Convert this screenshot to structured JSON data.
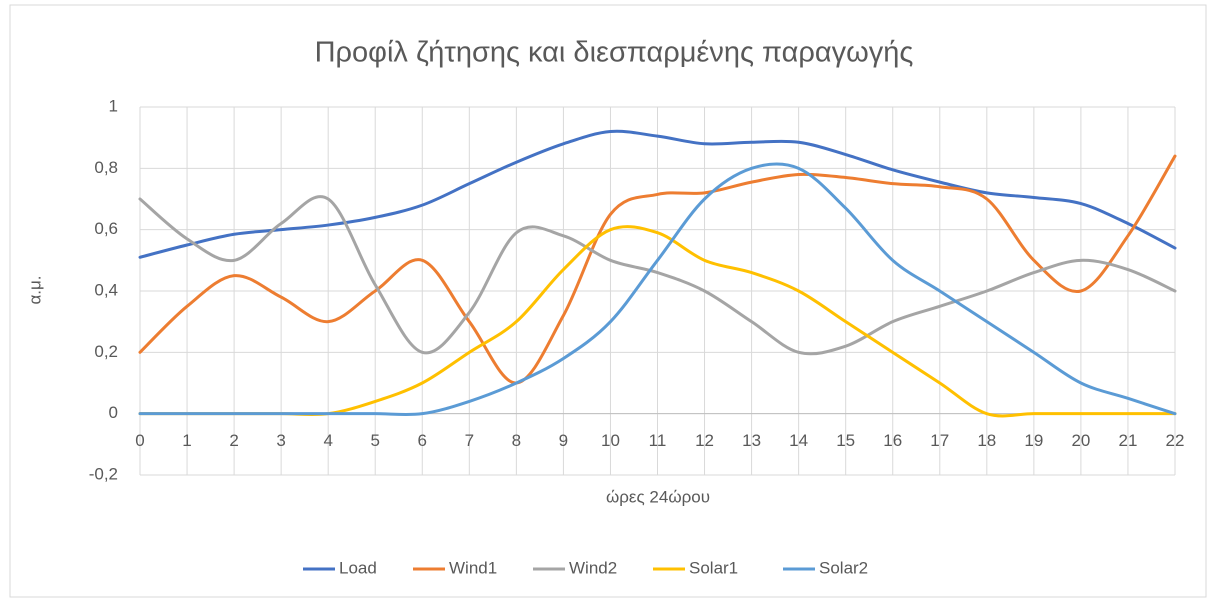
{
  "chart_data": {
    "type": "line",
    "title": "Προφίλ ζήτησης και διεσπαρμένης παραγωγής",
    "x_label": "ώρες 24ώρου",
    "y_label": "α.μ.",
    "x": [
      0,
      1,
      2,
      3,
      4,
      5,
      6,
      7,
      8,
      9,
      10,
      11,
      12,
      13,
      14,
      15,
      16,
      17,
      18,
      19,
      20,
      21,
      22
    ],
    "xlim": [
      0,
      22
    ],
    "xticks": [
      0,
      1,
      2,
      3,
      4,
      5,
      6,
      7,
      8,
      9,
      10,
      11,
      12,
      13,
      14,
      15,
      16,
      17,
      18,
      19,
      20,
      21,
      22
    ],
    "ylim": [
      -0.2,
      1
    ],
    "yticks": [
      {
        "value": -0.2,
        "label": "-0,2"
      },
      0,
      {
        "value": 0.2,
        "label": "0,2"
      },
      {
        "value": 0.4,
        "label": "0,4"
      },
      {
        "value": 0.6,
        "label": "0,6"
      },
      {
        "value": 0.8,
        "label": "0,8"
      },
      1
    ],
    "grid": true,
    "smooth": true,
    "legend": "bottom",
    "series": [
      {
        "name": "Load",
        "color": "#4472c4",
        "values": [
          0.51,
          0.55,
          0.585,
          0.6,
          0.615,
          0.64,
          0.68,
          0.75,
          0.82,
          0.88,
          0.92,
          0.905,
          0.88,
          0.885,
          0.885,
          0.845,
          0.795,
          0.755,
          0.72,
          0.705,
          0.685,
          0.62,
          0.54
        ]
      },
      {
        "name": "Wind1",
        "color": "#ed7d31",
        "values": [
          0.2,
          0.35,
          0.45,
          0.38,
          0.3,
          0.4,
          0.5,
          0.3,
          0.1,
          0.32,
          0.65,
          0.715,
          0.72,
          0.755,
          0.78,
          0.77,
          0.75,
          0.74,
          0.7,
          0.5,
          0.4,
          0.58,
          0.84
        ]
      },
      {
        "name": "Wind2",
        "color": "#a5a5a5",
        "values": [
          0.7,
          0.57,
          0.5,
          0.62,
          0.7,
          0.42,
          0.2,
          0.33,
          0.59,
          0.58,
          0.5,
          0.46,
          0.4,
          0.3,
          0.2,
          0.22,
          0.3,
          0.35,
          0.4,
          0.46,
          0.5,
          0.47,
          0.4
        ]
      },
      {
        "name": "Solar1",
        "color": "#ffc000",
        "values": [
          0,
          0,
          0,
          0,
          0,
          0.04,
          0.1,
          0.2,
          0.3,
          0.47,
          0.6,
          0.59,
          0.5,
          0.46,
          0.4,
          0.3,
          0.2,
          0.1,
          0,
          0,
          0,
          0,
          0
        ]
      },
      {
        "name": "Solar2",
        "color": "#5b9bd5",
        "values": [
          0,
          0,
          0,
          0,
          0,
          0,
          0,
          0.04,
          0.1,
          0.18,
          0.3,
          0.5,
          0.7,
          0.8,
          0.8,
          0.67,
          0.5,
          0.4,
          0.3,
          0.2,
          0.1,
          0.05,
          0
        ]
      }
    ]
  }
}
